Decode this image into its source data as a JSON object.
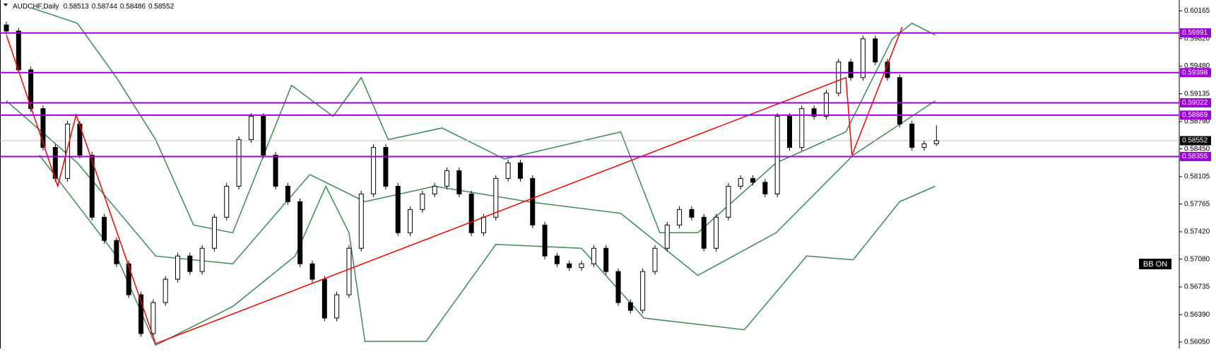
{
  "chart_data": {
    "type": "candlestick",
    "title": "AUDCHF,Daily",
    "open": [
      0.5999,
      0.59914,
      0.59432,
      0.5895,
      0.58468,
      0.58083,
      0.58758,
      0.58372,
      0.57601,
      0.57312,
      0.57022,
      0.56637,
      0.56155,
      0.5654,
      0.5683,
      0.57119,
      0.56926,
      0.57215,
      0.57601,
      0.57986,
      0.58565,
      0.58854,
      0.58372,
      0.57986,
      0.57794,
      0.57022,
      0.5683,
      0.56348,
      0.56637,
      0.57215,
      0.5789,
      0.58468,
      0.57986,
      0.57408,
      0.57697,
      0.5789,
      0.57986,
      0.58179,
      0.5789,
      0.57408,
      0.57601,
      0.58083,
      0.58276,
      0.58083,
      0.57504,
      0.57119,
      0.57022,
      0.56974,
      0.57022,
      0.57215,
      0.56926,
      0.5654,
      0.56444,
      0.56926,
      0.57215,
      0.57504,
      0.57697,
      0.57601,
      0.57215,
      0.57601,
      0.57986,
      0.58083,
      0.58035,
      0.5789,
      0.58854,
      0.58468,
      0.5895,
      0.58854,
      0.59143,
      0.59529,
      0.59336,
      0.59818,
      0.59529,
      0.59336,
      0.58758,
      0.58468,
      0.58513
    ],
    "high": [
      0.6003,
      0.59954,
      0.59472,
      0.5899,
      0.58508,
      0.58798,
      0.58798,
      0.58412,
      0.57641,
      0.57352,
      0.57062,
      0.56677,
      0.5658,
      0.5687,
      0.57159,
      0.57159,
      0.57255,
      0.57641,
      0.58026,
      0.58605,
      0.58894,
      0.58894,
      0.58412,
      0.58026,
      0.57834,
      0.57062,
      0.5687,
      0.56677,
      0.57255,
      0.5793,
      0.58508,
      0.58508,
      0.58026,
      0.57737,
      0.5793,
      0.58026,
      0.58219,
      0.58219,
      0.5793,
      0.57641,
      0.58123,
      0.58316,
      0.58316,
      0.58123,
      0.57544,
      0.57159,
      0.57062,
      0.57062,
      0.57255,
      0.57255,
      0.56966,
      0.5658,
      0.56966,
      0.57255,
      0.57544,
      0.57737,
      0.57737,
      0.57641,
      0.57641,
      0.58026,
      0.58123,
      0.58123,
      0.58075,
      0.58894,
      0.58894,
      0.5899,
      0.5899,
      0.59183,
      0.59569,
      0.59569,
      0.59858,
      0.59858,
      0.59569,
      0.59376,
      0.58798,
      0.58553,
      0.58744
    ],
    "low": [
      0.59874,
      0.59392,
      0.5891,
      0.58428,
      0.58043,
      0.58043,
      0.58332,
      0.57561,
      0.57272,
      0.56982,
      0.56597,
      0.56115,
      0.56115,
      0.565,
      0.5679,
      0.56886,
      0.56886,
      0.57175,
      0.57561,
      0.57946,
      0.58525,
      0.58332,
      0.57946,
      0.57754,
      0.56982,
      0.5679,
      0.56308,
      0.56308,
      0.56597,
      0.57175,
      0.5785,
      0.57946,
      0.57368,
      0.57368,
      0.57657,
      0.5785,
      0.57946,
      0.5785,
      0.57368,
      0.57368,
      0.57561,
      0.58043,
      0.58043,
      0.57464,
      0.57079,
      0.56982,
      0.56934,
      0.56934,
      0.56982,
      0.56886,
      0.565,
      0.56404,
      0.56404,
      0.56886,
      0.57175,
      0.57464,
      0.57561,
      0.57175,
      0.57175,
      0.57561,
      0.57946,
      0.57995,
      0.5785,
      0.5785,
      0.58428,
      0.58428,
      0.58814,
      0.58814,
      0.59103,
      0.59296,
      0.59296,
      0.59489,
      0.59296,
      0.58718,
      0.58428,
      0.58428,
      0.58486
    ],
    "close": [
      0.59914,
      0.59432,
      0.5895,
      0.58468,
      0.58083,
      0.58758,
      0.58372,
      0.57601,
      0.57312,
      0.57022,
      0.56637,
      0.56155,
      0.5654,
      0.5683,
      0.57119,
      0.56926,
      0.57215,
      0.57601,
      0.57986,
      0.58565,
      0.58854,
      0.58372,
      0.57986,
      0.57794,
      0.57022,
      0.5683,
      0.56348,
      0.56637,
      0.57215,
      0.5789,
      0.58468,
      0.57986,
      0.57408,
      0.57697,
      0.5789,
      0.57986,
      0.58179,
      0.5789,
      0.57408,
      0.57601,
      0.58083,
      0.58276,
      0.58083,
      0.57504,
      0.57119,
      0.57022,
      0.56974,
      0.57022,
      0.57215,
      0.56926,
      0.5654,
      0.56444,
      0.56926,
      0.57215,
      0.57504,
      0.57697,
      0.57601,
      0.57215,
      0.57601,
      0.57986,
      0.58083,
      0.58035,
      0.5789,
      0.58854,
      0.58468,
      0.5895,
      0.58854,
      0.59143,
      0.59529,
      0.59336,
      0.59818,
      0.59529,
      0.59336,
      0.58758,
      0.58468,
      0.58513,
      0.58552
    ],
    "up_color": "#ffffff",
    "down_color": "#000000",
    "ylim": [
      0.5597,
      0.603
    ],
    "yticks": [
      0.60165,
      {
        "value": 0.5982,
        "label": "0.59820"
      },
      {
        "value": 0.5948,
        "label": "0.59480"
      },
      0.59135,
      {
        "value": 0.5879,
        "label": "0.58790"
      },
      {
        "value": 0.5845,
        "label": "0.58450"
      },
      0.58105,
      0.57765,
      {
        "value": 0.5742,
        "label": "0.57420"
      },
      {
        "value": 0.5708,
        "label": "0.57080"
      },
      0.56735,
      {
        "value": 0.5639,
        "label": "0.56390"
      },
      {
        "value": 0.5605,
        "label": "0.56050"
      }
    ],
    "levels": [
      0.59891,
      0.59398,
      0.59022,
      0.58869,
      0.58355
    ],
    "level_color": "#9b00d6",
    "bands": [
      {
        "color": "#3d8a55",
        "x": [
          0,
          5.8,
          12.2,
          18.5,
          24.8,
          29.3,
          35,
          42.6,
          50.2,
          56.5,
          62.9,
          69.2,
          75.9
        ],
        "values": [
          0.59047,
          0.58276,
          0.57119,
          0.57022,
          0.58131,
          0.57794,
          0.57986,
          0.57794,
          0.57649,
          0.56878,
          0.57408,
          0.58372,
          0.59047
        ]
      },
      {
        "color": "#3d8a55",
        "x": [
          2,
          5.8,
          9,
          12.2,
          15.3,
          18.5,
          23.3,
          26.7,
          29,
          31.2,
          35.6,
          40.7,
          50.2,
          53.4,
          56.5,
          62.9,
          68.6,
          72.4,
          74,
          75.9
        ],
        "values": [
          0.60204,
          0.60011,
          0.59336,
          0.58565,
          0.57504,
          0.57408,
          0.5924,
          0.58854,
          0.59336,
          0.58565,
          0.58709,
          0.58324,
          0.58661,
          0.57408,
          0.57408,
          0.58276,
          0.58661,
          0.59818,
          0.60011,
          0.59866
        ]
      },
      {
        "color": "#3d8a55",
        "x": [
          2.7,
          9,
          12.2,
          18.5,
          23.6,
          26.1,
          28,
          29.3,
          34.3,
          40,
          47,
          52.1,
          60.3,
          65.4,
          69.2,
          73,
          75.9
        ],
        "values": [
          0.58372,
          0.57119,
          0.5601,
          0.56492,
          0.57119,
          0.57986,
          0.57408,
          0.56058,
          0.56058,
          0.57263,
          0.57215,
          0.56348,
          0.56203,
          0.57119,
          0.57071,
          0.57794,
          0.57986
        ]
      }
    ],
    "trendline": {
      "color": "#ff0000",
      "x": [
        0,
        4.2,
        5.7,
        12.2,
        68.6,
        69.1,
        73.2
      ],
      "values": [
        0.59866,
        0.57986,
        0.58873,
        0.5603,
        0.59336,
        0.58372,
        0.59963
      ]
    },
    "annotation": "BB ON"
  }
}
